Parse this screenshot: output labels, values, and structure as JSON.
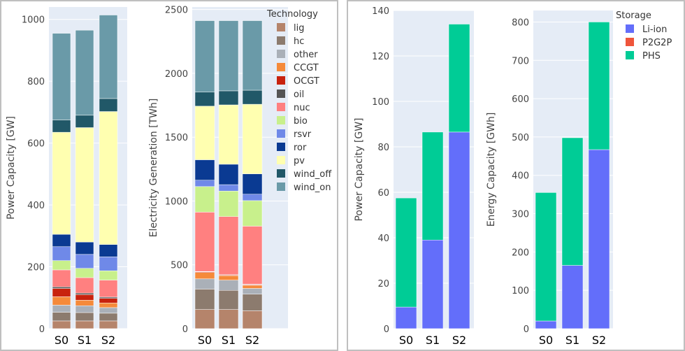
{
  "colors": {
    "lig": "#b5846b",
    "hc": "#8c7b6e",
    "other": "#aab0b8",
    "CCGT": "#f58a3a",
    "OCGT": "#c8220e",
    "oil": "#555555",
    "nuc": "#ff8080",
    "bio": "#c8f08c",
    "rsvr": "#6f89e8",
    "ror": "#0a3a92",
    "pv": "#ffffb0",
    "wind_off": "#215868",
    "wind_on": "#6a9aa8",
    "Li-ion": "#636efa",
    "P2G2P": "#ef553b",
    "PHS": "#00cc96"
  },
  "legend_tech": {
    "title": "Technology",
    "items": [
      "lig",
      "hc",
      "other",
      "CCGT",
      "OCGT",
      "oil",
      "nuc",
      "bio",
      "rsvr",
      "ror",
      "pv",
      "wind_off",
      "wind_on"
    ]
  },
  "legend_storage": {
    "title": "Storage",
    "items": [
      "Li-ion",
      "P2G2P",
      "PHS"
    ]
  },
  "chart_data": [
    {
      "type": "bar",
      "stacked": true,
      "categories": [
        "S0",
        "S1",
        "S2"
      ],
      "ylabel": "Power Capacity [GW]",
      "ylim": [
        0,
        1040
      ],
      "yticks": [
        0,
        200,
        400,
        600,
        800,
        1000
      ],
      "series": [
        {
          "name": "lig",
          "values": [
            25,
            25,
            25
          ]
        },
        {
          "name": "hc",
          "values": [
            28,
            27,
            25
          ]
        },
        {
          "name": "other",
          "values": [
            23,
            22,
            18
          ]
        },
        {
          "name": "CCGT",
          "values": [
            27,
            18,
            15
          ]
        },
        {
          "name": "OCGT",
          "values": [
            27,
            18,
            15
          ]
        },
        {
          "name": "oil",
          "values": [
            5,
            5,
            4
          ]
        },
        {
          "name": "nuc",
          "values": [
            55,
            50,
            55
          ]
        },
        {
          "name": "bio",
          "values": [
            30,
            30,
            30
          ]
        },
        {
          "name": "rsvr",
          "values": [
            45,
            45,
            45
          ]
        },
        {
          "name": "ror",
          "values": [
            40,
            40,
            40
          ]
        },
        {
          "name": "pv",
          "values": [
            330,
            370,
            430
          ]
        },
        {
          "name": "wind_off",
          "values": [
            40,
            40,
            42
          ]
        },
        {
          "name": "wind_on",
          "values": [
            280,
            275,
            270
          ]
        }
      ]
    },
    {
      "type": "bar",
      "stacked": true,
      "categories": [
        "S0",
        "S1",
        "S2"
      ],
      "ylabel": "Electricity Generation [TWh]",
      "ylim": [
        0,
        2520
      ],
      "yticks": [
        0,
        500,
        1000,
        1500,
        2000,
        2500
      ],
      "series": [
        {
          "name": "lig",
          "values": [
            150,
            150,
            140
          ]
        },
        {
          "name": "hc",
          "values": [
            160,
            150,
            130
          ]
        },
        {
          "name": "other",
          "values": [
            80,
            80,
            45
          ]
        },
        {
          "name": "CCGT",
          "values": [
            50,
            35,
            25
          ]
        },
        {
          "name": "OCGT",
          "values": [
            5,
            5,
            5
          ]
        },
        {
          "name": "oil",
          "values": [
            3,
            3,
            3
          ]
        },
        {
          "name": "nuc",
          "values": [
            465,
            455,
            455
          ]
        },
        {
          "name": "bio",
          "values": [
            200,
            200,
            200
          ]
        },
        {
          "name": "rsvr",
          "values": [
            50,
            50,
            50
          ]
        },
        {
          "name": "ror",
          "values": [
            160,
            160,
            160
          ]
        },
        {
          "name": "pv",
          "values": [
            420,
            465,
            545
          ]
        },
        {
          "name": "wind_off",
          "values": [
            110,
            110,
            110
          ]
        },
        {
          "name": "wind_on",
          "values": [
            560,
            550,
            545
          ]
        }
      ]
    },
    {
      "type": "bar",
      "stacked": true,
      "categories": [
        "S0",
        "S1",
        "S2"
      ],
      "ylabel": "Power Capacity [GW]",
      "ylim": [
        0,
        140
      ],
      "yticks": [
        0,
        20,
        40,
        60,
        80,
        100,
        120,
        140
      ],
      "series": [
        {
          "name": "Li-ion",
          "values": [
            9.5,
            39,
            86.5
          ]
        },
        {
          "name": "P2G2P",
          "values": [
            0,
            0,
            0
          ]
        },
        {
          "name": "PHS",
          "values": [
            48,
            47.5,
            47.5
          ]
        }
      ]
    },
    {
      "type": "bar",
      "stacked": true,
      "categories": [
        "S0",
        "S1",
        "S2"
      ],
      "ylabel": "Energy Capacity [GWh]",
      "ylim": [
        0,
        830
      ],
      "yticks": [
        0,
        100,
        200,
        300,
        400,
        500,
        600,
        700,
        800
      ],
      "series": [
        {
          "name": "Li-ion",
          "values": [
            20,
            165,
            467
          ]
        },
        {
          "name": "P2G2P",
          "values": [
            0,
            0,
            0
          ]
        },
        {
          "name": "PHS",
          "values": [
            335,
            333,
            333
          ]
        }
      ]
    }
  ]
}
